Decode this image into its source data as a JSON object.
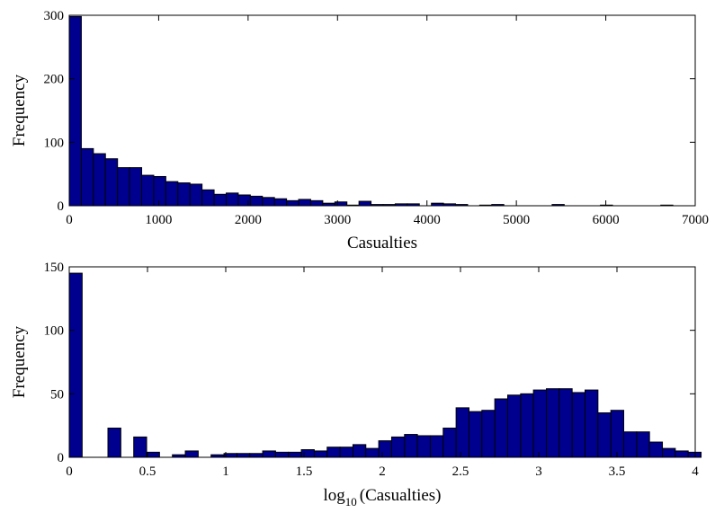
{
  "chart_data": [
    {
      "type": "bar",
      "xlabel": "Casualties",
      "ylabel": "Frequency",
      "xlim": [
        0,
        7000
      ],
      "ylim": [
        0,
        300
      ],
      "xticks": [
        0,
        1000,
        2000,
        3000,
        4000,
        5000,
        6000,
        7000
      ],
      "yticks": [
        0,
        100,
        200,
        300
      ],
      "grid": false,
      "bin_width": 135,
      "values": [
        298,
        90,
        82,
        74,
        60,
        60,
        48,
        46,
        38,
        36,
        34,
        25,
        18,
        20,
        17,
        15,
        13,
        11,
        8,
        10,
        8,
        4,
        6,
        1,
        7,
        2,
        2,
        3,
        3,
        0,
        4,
        3,
        2,
        0,
        1,
        2,
        0,
        0,
        0,
        0,
        2,
        0,
        0,
        0,
        1,
        0,
        0,
        0,
        0,
        1,
        0
      ]
    },
    {
      "type": "bar",
      "xlabel_base": "log",
      "xlabel_sub": "10",
      "xlabel_rest": "(Casualties)",
      "ylabel": "Frequency",
      "xlim": [
        0,
        4
      ],
      "ylim": [
        0,
        150
      ],
      "xticks": [
        0,
        0.5,
        1,
        1.5,
        2,
        2.5,
        3,
        3.5,
        4
      ],
      "xtick_labels": [
        "0",
        "0.5",
        "1",
        "1.5",
        "2",
        "2.5",
        "3",
        "3.5",
        "4"
      ],
      "yticks": [
        0,
        50,
        100,
        150
      ],
      "grid": false,
      "bin_width": 0.0824,
      "values": [
        145,
        0,
        0,
        23,
        0,
        16,
        4,
        0,
        2,
        5,
        0,
        2,
        3,
        3,
        3,
        5,
        4,
        4,
        6,
        5,
        8,
        8,
        10,
        7,
        13,
        16,
        18,
        17,
        17,
        23,
        39,
        36,
        37,
        46,
        49,
        50,
        53,
        54,
        54,
        51,
        53,
        35,
        37,
        20,
        20,
        12,
        7,
        5,
        4,
        0
      ]
    }
  ]
}
